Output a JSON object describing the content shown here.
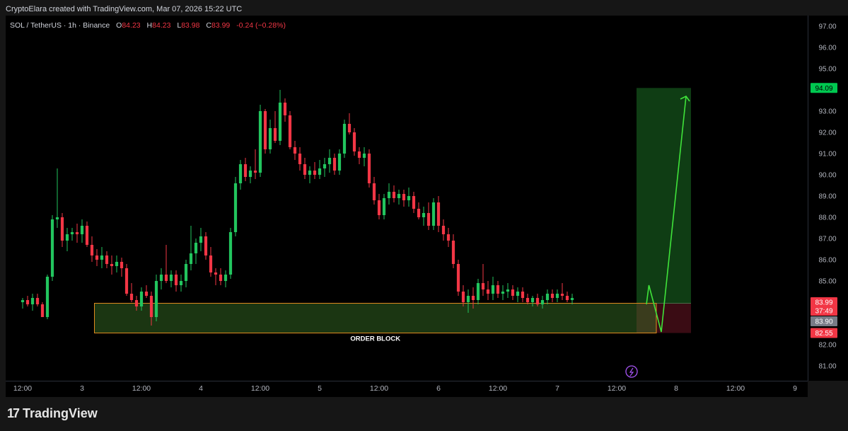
{
  "header": {
    "credit": "CryptoElara created with TradingView.com, Mar 07, 2026 15:22 UTC"
  },
  "symbol": {
    "name": "SOL / TetherUS · 1h · Binance",
    "o_label": "O",
    "o": "84.23",
    "h_label": "H",
    "h": "84.23",
    "l_label": "L",
    "l": "83.98",
    "c_label": "C",
    "c": "83.99",
    "change": "-0.24 (−0.28%)"
  },
  "footer": {
    "brand": "TradingView"
  },
  "chart_data": {
    "type": "candlestick",
    "ylim": [
      80.3,
      97.5
    ],
    "price_ticks": [
      "81.00",
      "82.00",
      "83.00",
      "84.00",
      "85.00",
      "86.00",
      "87.00",
      "88.00",
      "89.00",
      "90.00",
      "91.00",
      "92.00",
      "93.00",
      "94.00",
      "95.00",
      "96.00",
      "97.00"
    ],
    "time_ticks": [
      {
        "label": "12:00",
        "hour": 0
      },
      {
        "label": "3",
        "hour": 12
      },
      {
        "label": "12:00",
        "hour": 24
      },
      {
        "label": "4",
        "hour": 36
      },
      {
        "label": "12:00",
        "hour": 48
      },
      {
        "label": "5",
        "hour": 60
      },
      {
        "label": "12:00",
        "hour": 72
      },
      {
        "label": "6",
        "hour": 84
      },
      {
        "label": "12:00",
        "hour": 96
      },
      {
        "label": "7",
        "hour": 108
      },
      {
        "label": "12:00",
        "hour": 120
      },
      {
        "label": "8",
        "hour": 132
      },
      {
        "label": "12:00",
        "hour": 144
      },
      {
        "label": "9",
        "hour": 156
      }
    ],
    "price_labels": [
      {
        "text": "94.09",
        "price": 94.09,
        "bg": "#00c850",
        "fg": "#000000"
      },
      {
        "text": "83.99",
        "price": 84.0,
        "bg": "#f23645",
        "fg": "#ffffff"
      },
      {
        "text": "37:49",
        "price": 83.6,
        "bg": "#f23645",
        "fg": "#ffffff"
      },
      {
        "text": "83.90",
        "price": 83.1,
        "bg": "#787b86",
        "fg": "#ffffff"
      },
      {
        "text": "82.55",
        "price": 82.55,
        "bg": "#f23645",
        "fg": "#ffffff"
      }
    ],
    "order_block": {
      "label": "ORDER BLOCK",
      "top": 83.95,
      "bottom": 82.55,
      "start_hour": 14.5,
      "end_hour": 128
    },
    "long_position": {
      "entry": 83.95,
      "target": 94.09,
      "stop": 82.55,
      "start_hour": 124,
      "end_hour": 135
    },
    "projection": [
      {
        "hour": 126,
        "price": 83.9
      },
      {
        "hour": 126.5,
        "price": 84.8
      },
      {
        "hour": 129,
        "price": 82.6
      },
      {
        "hour": 134,
        "price": 93.7
      }
    ],
    "colors": {
      "up": "#22c55e",
      "down": "#f23645",
      "projection": "#3fe33a"
    },
    "candles": [
      [
        84.0,
        84.2,
        83.7,
        84.1
      ],
      [
        84.1,
        84.3,
        83.8,
        83.9
      ],
      [
        83.9,
        84.4,
        83.6,
        84.2
      ],
      [
        84.2,
        84.4,
        83.8,
        83.9
      ],
      [
        83.9,
        84.0,
        83.3,
        83.3
      ],
      [
        83.3,
        85.3,
        83.2,
        85.2
      ],
      [
        85.2,
        88.1,
        85.0,
        87.9
      ],
      [
        87.9,
        90.3,
        87.5,
        88.0
      ],
      [
        88.0,
        88.2,
        86.6,
        86.9
      ],
      [
        86.9,
        87.5,
        86.4,
        87.2
      ],
      [
        87.2,
        87.5,
        86.9,
        87.3
      ],
      [
        87.3,
        87.7,
        86.8,
        87.2
      ],
      [
        87.2,
        87.9,
        86.8,
        87.6
      ],
      [
        87.6,
        87.8,
        86.6,
        86.7
      ],
      [
        86.7,
        87.1,
        85.9,
        86.2
      ],
      [
        86.2,
        86.5,
        85.7,
        86.0
      ],
      [
        86.0,
        86.6,
        85.6,
        86.2
      ],
      [
        86.2,
        86.4,
        85.6,
        85.8
      ],
      [
        85.8,
        86.2,
        85.3,
        85.7
      ],
      [
        85.7,
        86.2,
        85.4,
        85.9
      ],
      [
        85.9,
        86.1,
        85.2,
        85.6
      ],
      [
        85.6,
        85.8,
        84.3,
        84.4
      ],
      [
        84.4,
        84.9,
        84.0,
        84.1
      ],
      [
        84.1,
        84.3,
        83.6,
        83.8
      ],
      [
        83.8,
        84.7,
        83.6,
        84.5
      ],
      [
        84.5,
        84.8,
        84.2,
        84.3
      ],
      [
        84.3,
        84.5,
        82.9,
        83.3
      ],
      [
        83.3,
        85.3,
        83.1,
        85.0
      ],
      [
        85.0,
        85.6,
        84.6,
        85.3
      ],
      [
        85.3,
        86.7,
        84.9,
        85.0
      ],
      [
        85.0,
        85.5,
        84.7,
        85.3
      ],
      [
        85.3,
        85.5,
        84.5,
        84.8
      ],
      [
        84.8,
        85.3,
        84.5,
        85.0
      ],
      [
        85.0,
        86.0,
        84.7,
        85.8
      ],
      [
        85.8,
        87.6,
        85.5,
        86.3
      ],
      [
        86.3,
        87.0,
        85.8,
        86.8
      ],
      [
        86.8,
        87.5,
        86.4,
        87.1
      ],
      [
        87.1,
        87.3,
        86.0,
        86.2
      ],
      [
        86.2,
        86.6,
        85.2,
        85.4
      ],
      [
        85.4,
        85.6,
        84.8,
        85.3
      ],
      [
        85.3,
        85.6,
        84.8,
        85.0
      ],
      [
        85.0,
        85.5,
        84.7,
        85.3
      ],
      [
        85.3,
        87.5,
        85.1,
        87.3
      ],
      [
        87.3,
        89.9,
        87.1,
        89.6
      ],
      [
        89.6,
        90.7,
        89.3,
        90.5
      ],
      [
        90.5,
        90.8,
        89.7,
        89.9
      ],
      [
        89.9,
        90.4,
        89.6,
        90.2
      ],
      [
        90.2,
        91.2,
        89.8,
        90.1
      ],
      [
        90.1,
        93.3,
        89.9,
        93.0
      ],
      [
        93.0,
        93.1,
        91.0,
        91.2
      ],
      [
        91.2,
        92.6,
        91.0,
        92.2
      ],
      [
        92.2,
        93.0,
        91.5,
        91.6
      ],
      [
        91.6,
        94.0,
        91.4,
        93.4
      ],
      [
        93.4,
        93.6,
        92.5,
        92.8
      ],
      [
        92.8,
        93.0,
        91.2,
        91.3
      ],
      [
        91.3,
        91.6,
        90.7,
        91.0
      ],
      [
        91.0,
        91.3,
        90.2,
        90.5
      ],
      [
        90.5,
        90.8,
        89.8,
        90.0
      ],
      [
        90.0,
        90.4,
        89.6,
        90.2
      ],
      [
        90.2,
        90.6,
        89.8,
        90.0
      ],
      [
        90.0,
        90.7,
        89.8,
        90.3
      ],
      [
        90.3,
        90.8,
        89.9,
        90.5
      ],
      [
        90.5,
        91.2,
        90.1,
        90.8
      ],
      [
        90.8,
        91.0,
        90.0,
        90.2
      ],
      [
        90.2,
        91.2,
        90.0,
        91.0
      ],
      [
        91.0,
        92.6,
        90.8,
        92.4
      ],
      [
        92.4,
        92.9,
        91.9,
        92.0
      ],
      [
        92.0,
        92.2,
        90.9,
        91.1
      ],
      [
        91.1,
        91.3,
        90.5,
        90.8
      ],
      [
        90.8,
        91.3,
        90.4,
        91.0
      ],
      [
        91.0,
        91.2,
        89.4,
        89.6
      ],
      [
        89.6,
        89.9,
        88.6,
        88.8
      ],
      [
        88.8,
        89.1,
        87.9,
        88.1
      ],
      [
        88.1,
        89.1,
        87.9,
        88.9
      ],
      [
        88.9,
        89.6,
        88.6,
        89.2
      ],
      [
        89.2,
        89.5,
        88.7,
        88.9
      ],
      [
        88.9,
        89.3,
        88.6,
        89.1
      ],
      [
        89.1,
        89.3,
        88.5,
        88.8
      ],
      [
        88.8,
        89.4,
        88.5,
        89.0
      ],
      [
        89.0,
        89.2,
        88.2,
        88.4
      ],
      [
        88.4,
        88.7,
        87.9,
        88.0
      ],
      [
        88.0,
        88.5,
        87.6,
        88.2
      ],
      [
        88.2,
        88.7,
        87.4,
        87.6
      ],
      [
        87.6,
        88.9,
        87.4,
        88.7
      ],
      [
        88.7,
        89.0,
        87.3,
        87.6
      ],
      [
        87.6,
        87.9,
        86.9,
        87.2
      ],
      [
        87.2,
        87.5,
        86.6,
        86.9
      ],
      [
        86.9,
        87.2,
        85.6,
        85.8
      ],
      [
        85.8,
        86.0,
        84.3,
        84.5
      ],
      [
        84.5,
        84.8,
        83.8,
        84.0
      ],
      [
        84.0,
        84.6,
        83.5,
        84.3
      ],
      [
        84.3,
        84.7,
        83.7,
        84.1
      ],
      [
        84.1,
        85.1,
        83.9,
        84.9
      ],
      [
        84.9,
        85.8,
        84.3,
        84.6
      ],
      [
        84.6,
        85.0,
        84.1,
        84.4
      ],
      [
        84.4,
        85.2,
        84.1,
        84.8
      ],
      [
        84.8,
        85.0,
        84.2,
        84.4
      ],
      [
        84.4,
        84.8,
        84.1,
        84.5
      ],
      [
        84.5,
        84.9,
        84.2,
        84.6
      ],
      [
        84.6,
        84.8,
        84.1,
        84.3
      ],
      [
        84.3,
        84.7,
        84.0,
        84.5
      ],
      [
        84.5,
        84.7,
        84.0,
        84.2
      ],
      [
        84.2,
        84.4,
        83.9,
        84.0
      ],
      [
        84.0,
        84.3,
        83.8,
        84.2
      ],
      [
        84.2,
        84.4,
        83.8,
        83.9
      ],
      [
        83.9,
        84.3,
        83.7,
        84.1
      ],
      [
        84.1,
        84.6,
        83.9,
        84.4
      ],
      [
        84.4,
        84.6,
        84.0,
        84.2
      ],
      [
        84.2,
        84.6,
        84.0,
        84.4
      ],
      [
        84.4,
        84.9,
        84.1,
        84.3
      ],
      [
        84.3,
        84.5,
        84.0,
        84.1
      ],
      [
        84.1,
        84.4,
        83.9,
        84.2
      ]
    ]
  }
}
